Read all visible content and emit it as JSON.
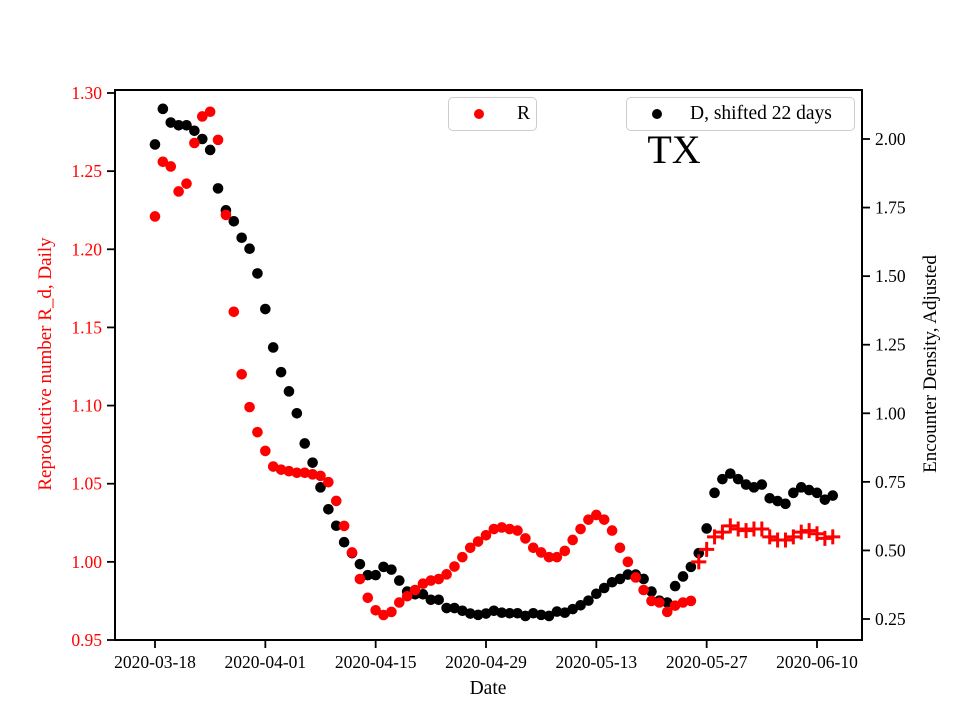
{
  "figure": {
    "title": "TX",
    "xlabel": "Date",
    "ylabel_left": "Reproductive number R_d, Daily",
    "ylabel_right": "Encounter Density, Adjusted"
  },
  "legend": {
    "r": {
      "label": "R",
      "marker": "red-dot",
      "color": "#ff0000"
    },
    "d": {
      "label": "D, shifted 22 days",
      "marker": "black-dot",
      "color": "#000000"
    }
  },
  "colors": {
    "r_series": "#ff0000",
    "d_series": "#000000",
    "left_axis_text": "#ff0000",
    "right_axis_text": "#000000",
    "axis_line": "#000000",
    "legend_border": "#cccccc",
    "background": "#ffffff"
  },
  "chart_data": {
    "type": "scatter",
    "title": "TX",
    "xlabel": "Date",
    "grid": false,
    "x_tick_labels": [
      "2020-03-18",
      "2020-04-01",
      "2020-04-15",
      "2020-04-29",
      "2020-05-13",
      "2020-05-27",
      "2020-06-10"
    ],
    "left_axis": {
      "label": "Reproductive number R_d, Daily",
      "color": "#ff0000",
      "range": [
        0.95,
        1.3
      ],
      "ticks": [
        0.95,
        1.0,
        1.05,
        1.1,
        1.15,
        1.2,
        1.25,
        1.3
      ],
      "tick_labels": [
        "0.95",
        "1.00",
        "1.05",
        "1.10",
        "1.15",
        "1.20",
        "1.25",
        "1.30"
      ]
    },
    "right_axis": {
      "label": "Encounter Density, Adjusted",
      "color": "#000000",
      "range": [
        0.25,
        2.0
      ],
      "ticks": [
        0.25,
        0.5,
        0.75,
        1.0,
        1.25,
        1.5,
        1.75,
        2.0
      ],
      "tick_labels": [
        "0.25",
        "0.50",
        "0.75",
        "1.00",
        "1.25",
        "1.50",
        "1.75",
        "2.00"
      ]
    },
    "dates": [
      "2020-03-18",
      "2020-03-19",
      "2020-03-20",
      "2020-03-21",
      "2020-03-22",
      "2020-03-23",
      "2020-03-24",
      "2020-03-25",
      "2020-03-26",
      "2020-03-27",
      "2020-03-28",
      "2020-03-29",
      "2020-03-30",
      "2020-03-31",
      "2020-04-01",
      "2020-04-02",
      "2020-04-03",
      "2020-04-04",
      "2020-04-05",
      "2020-04-06",
      "2020-04-07",
      "2020-04-08",
      "2020-04-09",
      "2020-04-10",
      "2020-04-11",
      "2020-04-12",
      "2020-04-13",
      "2020-04-14",
      "2020-04-15",
      "2020-04-16",
      "2020-04-17",
      "2020-04-18",
      "2020-04-19",
      "2020-04-20",
      "2020-04-21",
      "2020-04-22",
      "2020-04-23",
      "2020-04-24",
      "2020-04-25",
      "2020-04-26",
      "2020-04-27",
      "2020-04-28",
      "2020-04-29",
      "2020-04-30",
      "2020-05-01",
      "2020-05-02",
      "2020-05-03",
      "2020-05-04",
      "2020-05-05",
      "2020-05-06",
      "2020-05-07",
      "2020-05-08",
      "2020-05-09",
      "2020-05-10",
      "2020-05-11",
      "2020-05-12",
      "2020-05-13",
      "2020-05-14",
      "2020-05-15",
      "2020-05-16",
      "2020-05-17",
      "2020-05-18",
      "2020-05-19",
      "2020-05-20",
      "2020-05-21",
      "2020-05-22",
      "2020-05-23",
      "2020-05-24",
      "2020-05-25",
      "2020-05-26",
      "2020-05-27",
      "2020-05-28",
      "2020-05-29",
      "2020-05-30",
      "2020-05-31",
      "2020-06-01",
      "2020-06-02",
      "2020-06-03",
      "2020-06-04",
      "2020-06-05",
      "2020-06-06",
      "2020-06-07",
      "2020-06-08",
      "2020-06-09",
      "2020-06-10",
      "2020-06-11",
      "2020-06-12"
    ],
    "series": [
      {
        "name": "R",
        "axis": "left",
        "color": "#ff0000",
        "marker": "circle",
        "marker_change": {
          "marker": "plus",
          "from_date": "2020-05-26"
        },
        "values": [
          1.221,
          1.256,
          1.253,
          1.237,
          1.242,
          1.268,
          1.285,
          1.288,
          1.27,
          1.222,
          1.16,
          1.12,
          1.099,
          1.083,
          1.071,
          1.061,
          1.059,
          1.058,
          1.057,
          1.057,
          1.056,
          1.055,
          1.051,
          1.039,
          1.023,
          1.006,
          0.989,
          0.977,
          0.969,
          0.966,
          0.968,
          0.974,
          0.978,
          0.982,
          0.986,
          0.988,
          0.989,
          0.992,
          0.997,
          1.003,
          1.009,
          1.013,
          1.017,
          1.021,
          1.022,
          1.021,
          1.02,
          1.015,
          1.009,
          1.006,
          1.003,
          1.003,
          1.007,
          1.014,
          1.021,
          1.027,
          1.03,
          1.027,
          1.02,
          1.009,
          1.0,
          0.99,
          0.982,
          0.975,
          0.974,
          0.968,
          0.972,
          0.974,
          0.975,
          1.0,
          1.008,
          1.016,
          1.019,
          1.023,
          1.021,
          1.02,
          1.021,
          1.021,
          1.016,
          1.014,
          1.014,
          1.016,
          1.019,
          1.02,
          1.018,
          1.015,
          1.016
        ]
      },
      {
        "name": "D, shifted 22 days",
        "axis": "right",
        "color": "#000000",
        "marker": "circle",
        "values": [
          1.98,
          2.11,
          2.06,
          2.05,
          2.05,
          2.03,
          2.0,
          1.96,
          1.82,
          1.74,
          1.7,
          1.64,
          1.6,
          1.51,
          1.38,
          1.24,
          1.15,
          1.08,
          1.0,
          0.89,
          0.82,
          0.73,
          0.65,
          0.59,
          0.53,
          0.49,
          0.45,
          0.41,
          0.41,
          0.44,
          0.43,
          0.39,
          0.35,
          0.34,
          0.34,
          0.32,
          0.32,
          0.29,
          0.29,
          0.28,
          0.27,
          0.265,
          0.27,
          0.28,
          0.273,
          0.271,
          0.271,
          0.261,
          0.271,
          0.265,
          0.261,
          0.277,
          0.273,
          0.286,
          0.3,
          0.317,
          0.342,
          0.363,
          0.384,
          0.396,
          0.412,
          0.412,
          0.396,
          0.35,
          0.317,
          0.31,
          0.37,
          0.405,
          0.44,
          0.49,
          0.58,
          0.71,
          0.76,
          0.78,
          0.76,
          0.74,
          0.73,
          0.74,
          0.69,
          0.68,
          0.67,
          0.71,
          0.73,
          0.72,
          0.71,
          0.685,
          0.7
        ]
      }
    ]
  }
}
